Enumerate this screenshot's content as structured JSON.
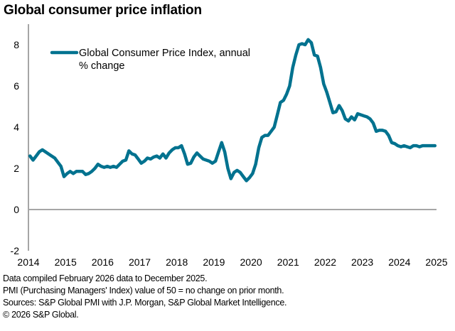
{
  "chart_data": {
    "type": "line",
    "title": "Global consumer price inflation",
    "xlabel": "",
    "ylabel": "",
    "ylim": [
      -2,
      9
    ],
    "yticks": [
      -2,
      0,
      2,
      4,
      6,
      8
    ],
    "xtick_labels": [
      "2014",
      "2015",
      "2016",
      "2017",
      "2018",
      "2019",
      "2020",
      "2021",
      "2022",
      "2023",
      "2024",
      "2025"
    ],
    "x_start": "2014-01",
    "x_end": "2025-12",
    "frequency": "monthly",
    "grid": false,
    "legend_position": "top-left",
    "line_color": "#00728f",
    "series": [
      {
        "name": "Global Consumer Price Index, annual % change",
        "values": [
          2.6,
          2.4,
          2.6,
          2.8,
          2.9,
          2.8,
          2.7,
          2.6,
          2.5,
          2.3,
          2.1,
          1.6,
          1.75,
          1.85,
          1.75,
          1.85,
          1.85,
          1.85,
          1.7,
          1.75,
          1.85,
          2.0,
          2.2,
          2.1,
          2.05,
          2.1,
          2.05,
          2.1,
          2.05,
          2.2,
          2.35,
          2.4,
          2.85,
          2.7,
          2.65,
          2.45,
          2.25,
          2.35,
          2.5,
          2.45,
          2.55,
          2.6,
          2.5,
          2.7,
          2.5,
          2.75,
          2.9,
          3.0,
          3.0,
          3.1,
          2.7,
          2.2,
          2.25,
          2.55,
          2.75,
          2.6,
          2.45,
          2.4,
          2.35,
          2.25,
          2.35,
          2.8,
          3.25,
          2.8,
          2.0,
          1.5,
          1.8,
          1.9,
          1.8,
          1.6,
          1.4,
          1.55,
          1.75,
          2.2,
          3.0,
          3.5,
          3.6,
          3.6,
          3.8,
          4.0,
          4.6,
          5.2,
          5.3,
          5.6,
          6.0,
          6.9,
          7.5,
          8.0,
          8.05,
          8.0,
          8.25,
          8.1,
          7.5,
          7.45,
          6.9,
          6.1,
          5.7,
          5.2,
          4.7,
          4.75,
          5.05,
          4.8,
          4.4,
          4.3,
          4.5,
          4.35,
          4.65,
          4.6,
          4.55,
          4.5,
          4.4,
          4.2,
          3.8,
          3.85,
          3.85,
          3.8,
          3.6,
          3.25,
          3.2,
          3.1,
          3.05,
          3.1,
          3.05,
          3.0,
          3.1,
          3.1,
          3.05,
          3.1,
          3.1,
          3.1,
          3.1,
          3.1
        ]
      }
    ]
  },
  "legend": {
    "line1": "Global Consumer Price Index, annual",
    "line2": "% change"
  },
  "footnotes": [
    "Data compiled February 2026 data to December 2025.",
    "PMI (Purchasing Managers' Index) value of 50 = no change on prior month.",
    "Sources: S&P Global PMI with J.P. Morgan, S&P Global Market Intelligence.",
    "© 2026 S&P Global."
  ]
}
